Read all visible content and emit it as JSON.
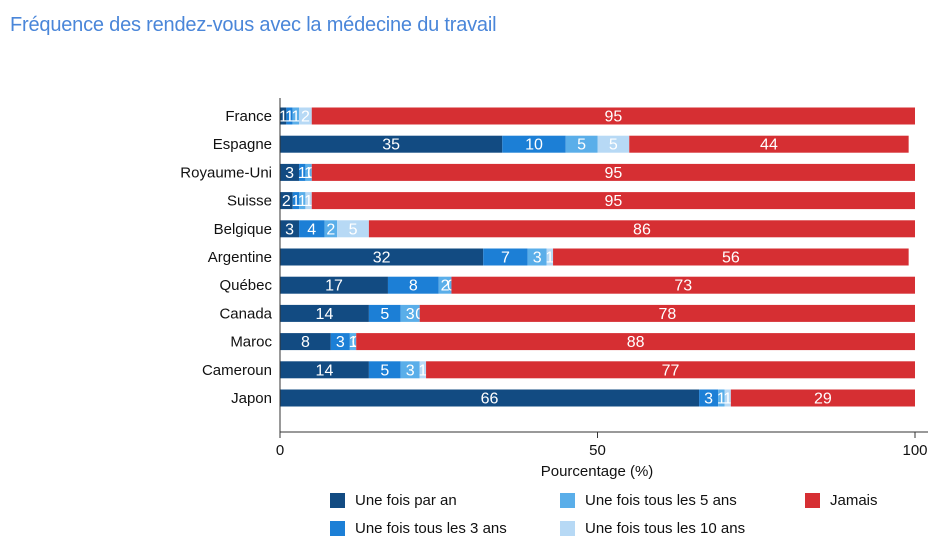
{
  "page_title": "Fréquence des rendez-vous avec la médecine du travail",
  "colors": {
    "series": [
      "#124b82",
      "#1c7fd6",
      "#5aaee9",
      "#b7d9f5",
      "#d62f33"
    ],
    "title": "#4a86d9"
  },
  "chart_data": {
    "type": "bar",
    "orientation": "horizontal",
    "stacked": true,
    "title": "",
    "xlabel": "Pourcentage (%)",
    "ylabel": "",
    "xlim": [
      0,
      100
    ],
    "xticks": [
      0,
      50,
      100
    ],
    "categories": [
      "France",
      "Espagne",
      "Royaume-Uni",
      "Suisse",
      "Belgique",
      "Argentine",
      "Québec",
      "Canada",
      "Maroc",
      "Cameroun",
      "Japon"
    ],
    "series": [
      {
        "name": "Une fois par an",
        "values": [
          1,
          35,
          3,
          2,
          3,
          32,
          17,
          14,
          8,
          14,
          66
        ]
      },
      {
        "name": "Une fois tous les 3 ans",
        "values": [
          1,
          10,
          1,
          1,
          4,
          7,
          8,
          5,
          3,
          5,
          3
        ]
      },
      {
        "name": "Une fois tous les 5 ans",
        "values": [
          1,
          5,
          1,
          1,
          2,
          3,
          2,
          3,
          1,
          3,
          1
        ]
      },
      {
        "name": "Une fois tous les 10 ans",
        "values": [
          2,
          5,
          0,
          1,
          5,
          1,
          0,
          0,
          0,
          1,
          1
        ]
      },
      {
        "name": "Jamais",
        "values": [
          95,
          44,
          95,
          95,
          86,
          56,
          73,
          78,
          88,
          77,
          29
        ]
      }
    ]
  },
  "legend": {
    "items": [
      "Une fois par an",
      "Une fois tous les 3 ans",
      "Une fois tous les 5 ans",
      "Une fois tous les 10 ans",
      "Jamais"
    ]
  }
}
